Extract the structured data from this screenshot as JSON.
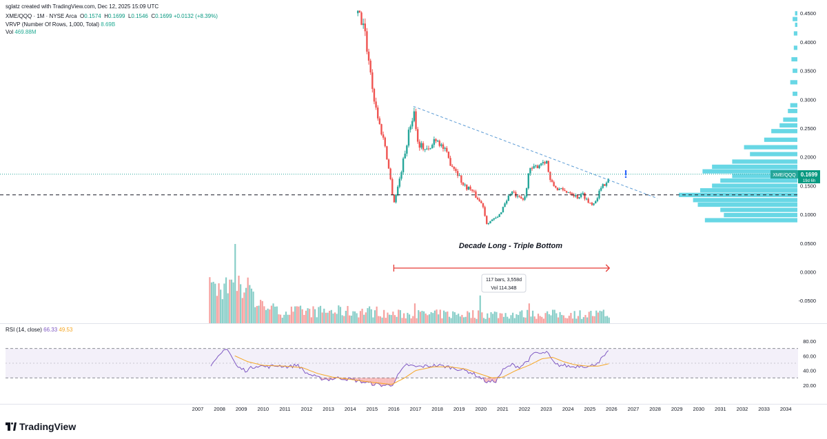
{
  "header": {
    "created": "sglatz created with TradingView.com, Dec 12, 2025 15:09 UTC",
    "symbol": "XME/QQQ · 1M · NYSE Arca",
    "ohlc": [
      {
        "k": "O",
        "v": "0.1574"
      },
      {
        "k": "H",
        "v": "0.1699"
      },
      {
        "k": "L",
        "v": "0.1546"
      },
      {
        "k": "C",
        "v": "0.1699"
      }
    ],
    "change": "+0.0132 (+8.39%)",
    "vrvp_label": "VRVP (Number Of Rows, 1,000, Total)",
    "vrvp_value": "8.69B",
    "vol_label": "Vol",
    "vol_value": "469.88M",
    "rsi_label": "RSI (14, close)",
    "rsi_value": "66.33",
    "rsi_ma_value": "49.53"
  },
  "brand": "TradingView",
  "annotation": {
    "title": "Decade Long - Triple Bottom",
    "measure_line1": "117 bars, 3,558d",
    "measure_line2": "Vol 114.34B",
    "exclamation": "!"
  },
  "price_badge": {
    "label": "XME/QQQ",
    "price": "0.1699",
    "countdown": "19d 6h"
  },
  "colors": {
    "up": "#26a69a",
    "down": "#ef5350",
    "trend": "#5b9bd5",
    "rsi": "#7e57c2",
    "rsi_ma": "#f5a623",
    "vp": "#4dd0e1",
    "measure": "#e53935"
  },
  "x_axis_labels": [
    "2007",
    "2008",
    "2009",
    "2010",
    "2011",
    "2012",
    "2013",
    "2014",
    "2015",
    "2016",
    "2017",
    "2018",
    "2019",
    "2020",
    "2021",
    "2022",
    "2023",
    "2024",
    "2025",
    "2026",
    "2027",
    "2028",
    "2029",
    "2030",
    "2031",
    "2032",
    "2033",
    "2034"
  ],
  "price_axis_labels": [
    "0.4500",
    "0.4000",
    "0.3500",
    "0.3000",
    "0.2500",
    "0.2000",
    "0.1500",
    "0.1000",
    "0.0500",
    "0.0000",
    "-0.0500"
  ],
  "rsi_axis_labels": [
    "80.00",
    "60.00",
    "40.00",
    "20.00"
  ],
  "chart_data": {
    "type": "candlestick",
    "interval": "1M",
    "price_ylim": [
      -0.05,
      0.45
    ],
    "rsi_ylim": [
      15,
      85
    ],
    "rsi_bands": [
      30,
      70
    ],
    "current_price": 0.1699,
    "support_level": 0.134,
    "trendline": {
      "from": {
        "x": 2016.9,
        "y": 0.288
      },
      "to": {
        "x": 2028.1,
        "y": 0.128
      }
    },
    "measure_range": {
      "from": 2016.0,
      "to": 2025.9
    },
    "price_anchors": [
      [
        2014.35,
        0.45
      ],
      [
        2014.6,
        0.43
      ],
      [
        2014.85,
        0.37
      ],
      [
        2015.1,
        0.3
      ],
      [
        2015.35,
        0.255
      ],
      [
        2015.6,
        0.22
      ],
      [
        2015.85,
        0.16
      ],
      [
        2016.0,
        0.12
      ],
      [
        2016.2,
        0.15
      ],
      [
        2016.5,
        0.205
      ],
      [
        2016.75,
        0.255
      ],
      [
        2016.95,
        0.28
      ],
      [
        2017.1,
        0.225
      ],
      [
        2017.4,
        0.215
      ],
      [
        2017.65,
        0.21
      ],
      [
        2017.9,
        0.235
      ],
      [
        2018.1,
        0.225
      ],
      [
        2018.35,
        0.21
      ],
      [
        2018.6,
        0.19
      ],
      [
        2018.9,
        0.175
      ],
      [
        2019.2,
        0.15
      ],
      [
        2019.5,
        0.145
      ],
      [
        2019.8,
        0.13
      ],
      [
        2020.1,
        0.115
      ],
      [
        2020.25,
        0.085
      ],
      [
        2020.5,
        0.09
      ],
      [
        2020.8,
        0.095
      ],
      [
        2021.1,
        0.12
      ],
      [
        2021.4,
        0.14
      ],
      [
        2021.7,
        0.128
      ],
      [
        2022.0,
        0.125
      ],
      [
        2022.2,
        0.175
      ],
      [
        2022.45,
        0.18
      ],
      [
        2022.75,
        0.19
      ],
      [
        2023.0,
        0.195
      ],
      [
        2023.2,
        0.155
      ],
      [
        2023.5,
        0.145
      ],
      [
        2023.8,
        0.14
      ],
      [
        2024.1,
        0.14
      ],
      [
        2024.4,
        0.13
      ],
      [
        2024.7,
        0.135
      ],
      [
        2024.95,
        0.12
      ],
      [
        2025.2,
        0.12
      ],
      [
        2025.45,
        0.14
      ],
      [
        2025.7,
        0.155
      ],
      [
        2025.92,
        0.1699
      ]
    ],
    "volume_spikes": [
      [
        2008.5,
        0.55
      ],
      [
        2008.7,
        1.0
      ],
      [
        2008.9,
        0.6
      ],
      [
        2016.95,
        0.25
      ],
      [
        2019.95,
        0.35
      ],
      [
        2022.2,
        0.25
      ]
    ],
    "rsi_anchors": [
      [
        2007.6,
        45
      ],
      [
        2008.0,
        60
      ],
      [
        2008.3,
        72
      ],
      [
        2008.5,
        62
      ],
      [
        2008.8,
        45
      ],
      [
        2009.2,
        40
      ],
      [
        2009.7,
        47
      ],
      [
        2010.2,
        45
      ],
      [
        2010.7,
        47
      ],
      [
        2011.2,
        45
      ],
      [
        2011.6,
        48
      ],
      [
        2011.9,
        38
      ],
      [
        2012.5,
        30
      ],
      [
        2013.0,
        28
      ],
      [
        2013.5,
        30
      ],
      [
        2014.0,
        28
      ],
      [
        2014.5,
        25
      ],
      [
        2015.0,
        22
      ],
      [
        2015.5,
        20
      ],
      [
        2015.9,
        20
      ],
      [
        2016.3,
        38
      ],
      [
        2016.6,
        48
      ],
      [
        2017.0,
        45
      ],
      [
        2017.5,
        46
      ],
      [
        2018.0,
        47
      ],
      [
        2018.5,
        45
      ],
      [
        2019.0,
        42
      ],
      [
        2019.5,
        38
      ],
      [
        2020.0,
        30
      ],
      [
        2020.3,
        24
      ],
      [
        2020.7,
        26
      ],
      [
        2021.0,
        40
      ],
      [
        2021.4,
        48
      ],
      [
        2021.8,
        45
      ],
      [
        2022.2,
        55
      ],
      [
        2022.5,
        65
      ],
      [
        2022.8,
        62
      ],
      [
        2023.0,
        66
      ],
      [
        2023.4,
        48
      ],
      [
        2023.8,
        47
      ],
      [
        2024.2,
        45
      ],
      [
        2024.6,
        47
      ],
      [
        2025.0,
        45
      ],
      [
        2025.4,
        52
      ],
      [
        2025.9,
        66.33
      ]
    ],
    "rsi_ma_anchors": [
      [
        2008.7,
        60
      ],
      [
        2009.3,
        52
      ],
      [
        2010.0,
        47
      ],
      [
        2011.0,
        46
      ],
      [
        2011.8,
        44
      ],
      [
        2012.5,
        36
      ],
      [
        2013.2,
        31
      ],
      [
        2014.0,
        28
      ],
      [
        2015.0,
        24
      ],
      [
        2015.9,
        21
      ],
      [
        2016.5,
        30
      ],
      [
        2017.0,
        40
      ],
      [
        2017.8,
        45
      ],
      [
        2018.6,
        45
      ],
      [
        2019.3,
        42
      ],
      [
        2019.9,
        36
      ],
      [
        2020.5,
        30
      ],
      [
        2021.0,
        31
      ],
      [
        2021.6,
        40
      ],
      [
        2022.2,
        47
      ],
      [
        2022.8,
        56
      ],
      [
        2023.3,
        58
      ],
      [
        2023.8,
        52
      ],
      [
        2024.3,
        48
      ],
      [
        2024.9,
        46
      ],
      [
        2025.4,
        46
      ],
      [
        2025.9,
        49.53
      ]
    ],
    "volume_profile": [
      [
        0.45,
        0.02
      ],
      [
        0.44,
        0.04
      ],
      [
        0.43,
        0.02
      ],
      [
        0.415,
        0.03
      ],
      [
        0.39,
        0.03
      ],
      [
        0.37,
        0.05
      ],
      [
        0.35,
        0.04
      ],
      [
        0.33,
        0.06
      ],
      [
        0.31,
        0.04
      ],
      [
        0.29,
        0.06
      ],
      [
        0.28,
        0.08
      ],
      [
        0.265,
        0.12
      ],
      [
        0.255,
        0.15
      ],
      [
        0.245,
        0.22
      ],
      [
        0.23,
        0.28
      ],
      [
        0.217,
        0.45
      ],
      [
        0.205,
        0.4
      ],
      [
        0.192,
        0.55
      ],
      [
        0.183,
        0.72
      ],
      [
        0.175,
        0.8
      ],
      [
        0.167,
        0.55
      ],
      [
        0.159,
        0.65
      ],
      [
        0.15,
        0.72
      ],
      [
        0.142,
        0.82
      ],
      [
        0.134,
        1.0
      ],
      [
        0.125,
        0.88
      ],
      [
        0.117,
        0.84
      ],
      [
        0.108,
        0.65
      ],
      [
        0.099,
        0.62
      ],
      [
        0.09,
        0.78
      ]
    ]
  }
}
